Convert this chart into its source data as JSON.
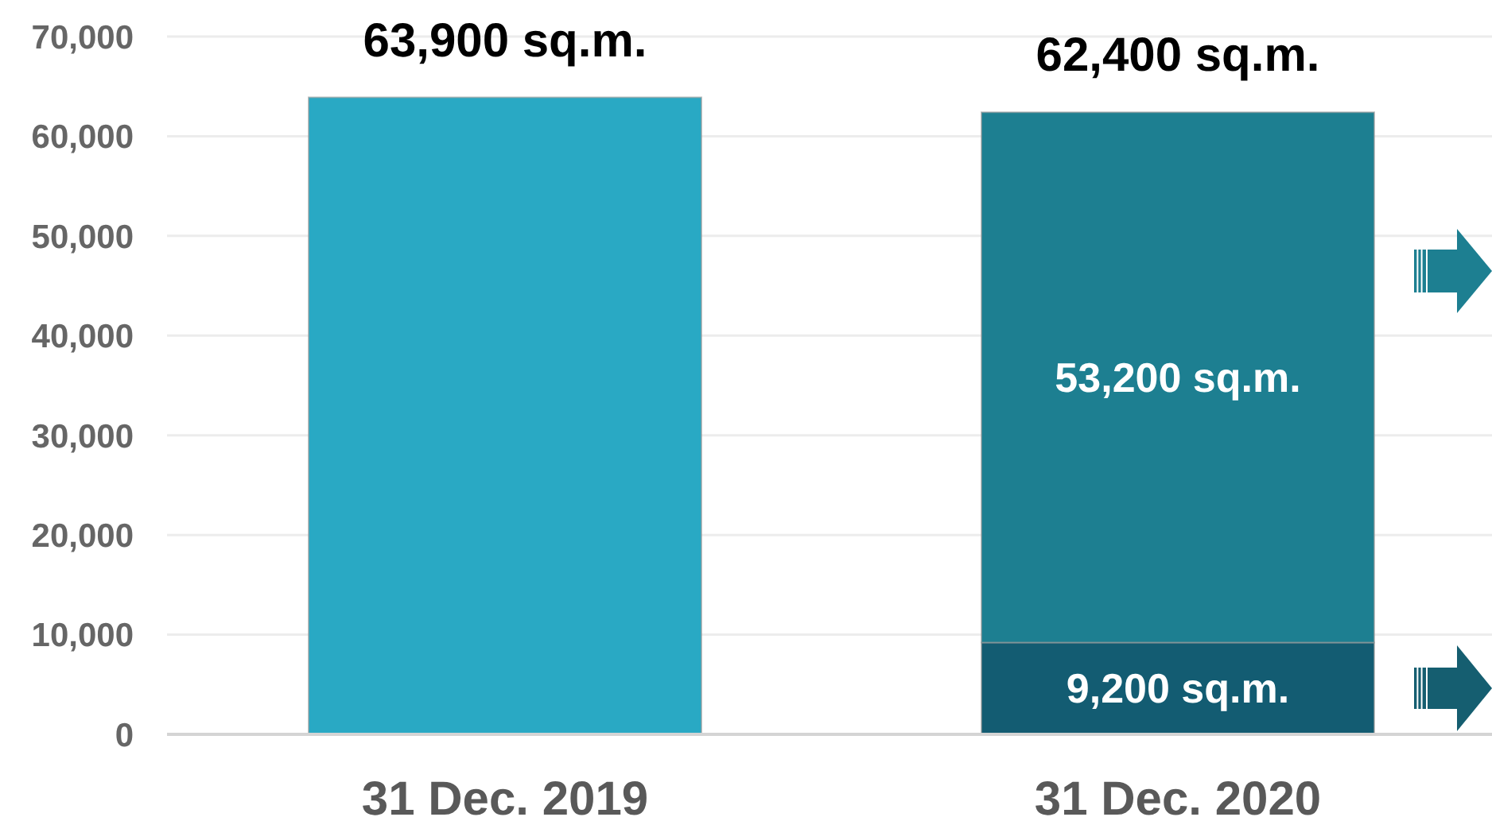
{
  "chart_data": {
    "type": "bar",
    "categories": [
      "31 Dec. 2019",
      "31 Dec. 2020"
    ],
    "stacked": true,
    "series": [
      {
        "color": "#29a9c4",
        "values": [
          63900,
          null
        ]
      },
      {
        "color": "#135c72",
        "values": [
          null,
          9200
        ],
        "value_labels": [
          null,
          "9,200 sq.m."
        ]
      },
      {
        "color": "#1d7f91",
        "values": [
          null,
          53200
        ],
        "value_labels": [
          null,
          "53,200 sq.m."
        ]
      }
    ],
    "totals": [
      "63,900 sq.m.",
      "62,400 sq.m."
    ],
    "ylim": [
      0,
      70000
    ],
    "yticks": [
      {
        "value": 0,
        "label": "0"
      },
      {
        "value": 10000,
        "label": "10,000"
      },
      {
        "value": 20000,
        "label": "20,000"
      },
      {
        "value": 30000,
        "label": "30,000"
      },
      {
        "value": 40000,
        "label": "40,000"
      },
      {
        "value": 50000,
        "label": "50,000"
      },
      {
        "value": 60000,
        "label": "60,000"
      },
      {
        "value": 70000,
        "label": "70,000"
      }
    ],
    "grid": "y"
  }
}
